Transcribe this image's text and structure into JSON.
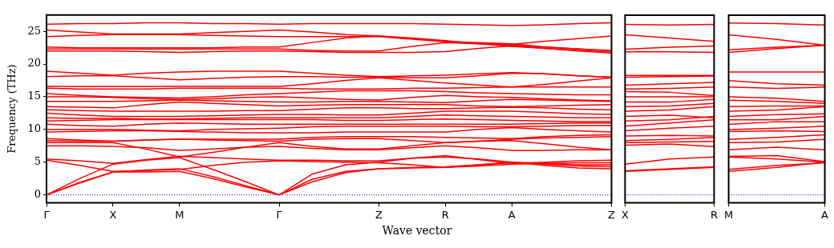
{
  "chart_data": [
    {
      "type": "line",
      "ylabel": "Frequency (THz)",
      "xlabel": "Wave vector",
      "color": "#ff0000",
      "categories": [
        "Γ",
        null,
        "X",
        null,
        "M",
        null,
        null,
        "Γ",
        null,
        null,
        "Z",
        null,
        "R",
        null,
        "A",
        null,
        null,
        "Z"
      ],
      "ylim": [
        -1.2,
        27.5
      ],
      "yticks": [
        0,
        5,
        10,
        15,
        20,
        25
      ],
      "ref_lines": [
        {
          "axis": "y",
          "value": 0,
          "color": "#0000ff",
          "line_style": "dotted"
        }
      ],
      "series": [
        {
          "values": [
            0,
            1.8,
            3.5,
            3.5,
            3.6,
            2.5,
            1.2,
            0,
            2.0,
            3.4,
            4.0,
            4.1,
            4.2,
            4.6,
            5.0,
            4.5,
            4.1,
            4.0
          ]
        },
        {
          "values": [
            0,
            1.9,
            3.5,
            3.8,
            4.0,
            2.8,
            1.4,
            0,
            2.4,
            3.6,
            4.0,
            4.2,
            4.3,
            4.6,
            4.9,
            4.7,
            4.4,
            4.3
          ]
        },
        {
          "values": [
            0,
            2.5,
            4.7,
            5.3,
            5.7,
            3.9,
            2.0,
            0,
            3.2,
            4.6,
            5.0,
            5.6,
            5.8,
            5.5,
            5.0,
            4.8,
            4.6,
            4.6
          ]
        },
        {
          "values": [
            5.5,
            5.2,
            4.8,
            5.4,
            5.9,
            5.7,
            5.5,
            5.3,
            5.3,
            5.2,
            5.2,
            5.6,
            6.0,
            5.4,
            4.8,
            5.0,
            5.2,
            5.3
          ]
        },
        {
          "values": [
            5.3,
            4.5,
            3.6,
            3.7,
            3.9,
            4.5,
            5.0,
            5.2,
            5.1,
            5.0,
            4.9,
            4.6,
            4.2,
            4.4,
            4.7,
            4.8,
            4.9,
            4.9
          ]
        },
        {
          "values": [
            7.5,
            7.5,
            7.4,
            7.2,
            6.8,
            7.0,
            7.3,
            7.4,
            7.1,
            6.9,
            6.9,
            7.2,
            7.5,
            7.2,
            6.8,
            6.8,
            6.9,
            6.9
          ]
        },
        {
          "values": [
            8.0,
            8.0,
            8.0,
            7.0,
            5.8,
            6.5,
            7.3,
            8.0,
            7.4,
            7.0,
            7.0,
            7.5,
            8.0,
            8.2,
            8.3,
            7.8,
            7.3,
            6.9
          ]
        },
        {
          "values": [
            8.3,
            8.2,
            8.2,
            8.4,
            8.5,
            8.4,
            8.3,
            8.2,
            8.5,
            8.6,
            8.6,
            8.3,
            8.0,
            8.2,
            8.5,
            8.7,
            8.8,
            8.9
          ]
        },
        {
          "values": [
            8.6,
            8.4,
            8.2,
            8.4,
            8.5,
            8.5,
            8.5,
            8.5,
            8.8,
            8.9,
            8.9,
            8.9,
            8.8,
            8.7,
            8.6,
            8.9,
            9.1,
            9.2
          ]
        },
        {
          "values": [
            9.6,
            9.7,
            9.8,
            9.8,
            9.7,
            9.6,
            9.5,
            9.5,
            9.5,
            9.6,
            9.6,
            9.6,
            9.6,
            10.0,
            10.3,
            10.0,
            9.8,
            9.6
          ]
        },
        {
          "values": [
            10.0,
            10.0,
            10.0,
            9.9,
            9.8,
            10.0,
            10.1,
            10.2,
            10.4,
            10.5,
            10.5,
            10.5,
            10.5,
            10.4,
            10.4,
            10.5,
            10.6,
            10.6
          ]
        },
        {
          "values": [
            10.8,
            10.6,
            10.5,
            10.8,
            11.0,
            10.9,
            10.8,
            10.8,
            10.8,
            10.8,
            10.8,
            10.8,
            10.8,
            10.8,
            10.8,
            10.9,
            11.0,
            11.0
          ]
        },
        {
          "values": [
            11.3,
            11.4,
            11.5,
            11.5,
            11.5,
            11.5,
            11.5,
            11.5,
            11.5,
            11.4,
            11.4,
            11.5,
            11.6,
            11.5,
            11.4,
            11.3,
            11.2,
            11.2
          ]
        },
        {
          "values": [
            11.8,
            11.7,
            11.7,
            11.6,
            11.6,
            11.7,
            11.8,
            11.8,
            11.8,
            11.8,
            11.8,
            12.0,
            12.2,
            12.1,
            12.0,
            11.9,
            11.8,
            11.8
          ]
        },
        {
          "values": [
            12.5,
            12.2,
            12.0,
            12.0,
            12.0,
            12.1,
            12.2,
            12.3,
            12.3,
            12.2,
            12.2,
            12.5,
            12.8,
            12.8,
            12.8,
            12.6,
            12.4,
            12.3
          ]
        },
        {
          "values": [
            13.0,
            12.9,
            12.8,
            12.8,
            12.8,
            12.8,
            12.9,
            12.9,
            13.1,
            13.3,
            13.3,
            13.2,
            13.2,
            13.3,
            13.4,
            13.3,
            13.1,
            13.0
          ]
        },
        {
          "values": [
            13.5,
            13.4,
            13.3,
            13.8,
            14.2,
            14.0,
            13.8,
            13.6,
            13.7,
            13.8,
            13.8,
            13.8,
            13.8,
            13.6,
            13.5,
            13.6,
            13.7,
            13.8
          ]
        },
        {
          "values": [
            14.3,
            14.3,
            14.3,
            14.4,
            14.5,
            14.4,
            14.3,
            14.2,
            14.2,
            14.3,
            14.3,
            14.2,
            14.1,
            14.4,
            14.6,
            14.5,
            14.4,
            14.3
          ]
        },
        {
          "values": [
            15.0,
            15.0,
            14.9,
            14.7,
            14.6,
            14.7,
            14.9,
            15.0,
            14.8,
            14.6,
            14.5,
            14.9,
            15.2,
            15.0,
            14.9,
            14.7,
            14.5,
            14.4
          ]
        },
        {
          "values": [
            15.5,
            15.2,
            15.0,
            14.9,
            14.8,
            15.0,
            15.3,
            15.5,
            15.7,
            15.9,
            15.9,
            15.9,
            15.8,
            15.6,
            15.5,
            15.4,
            15.3,
            15.3
          ]
        },
        {
          "values": [
            16.3,
            16.2,
            16.2,
            16.2,
            16.3,
            16.3,
            16.3,
            16.3,
            16.2,
            16.2,
            16.2,
            16.3,
            16.3,
            16.4,
            16.5,
            16.5,
            16.5,
            16.5
          ]
        },
        {
          "values": [
            16.6,
            16.6,
            16.6,
            16.6,
            16.6,
            16.6,
            16.6,
            16.6,
            17.0,
            17.5,
            17.9,
            17.5,
            17.1,
            16.8,
            16.5,
            16.9,
            17.4,
            17.9
          ]
        },
        {
          "values": [
            18.1,
            18.2,
            18.2,
            17.9,
            17.6,
            17.8,
            18.0,
            18.1,
            18.1,
            18.0,
            18.0,
            17.9,
            17.9,
            18.2,
            18.6,
            18.5,
            18.2,
            18.0
          ]
        },
        {
          "values": [
            18.9,
            18.6,
            18.3,
            18.6,
            18.8,
            18.9,
            18.9,
            18.9,
            18.6,
            18.3,
            18.1,
            18.2,
            18.3,
            18.5,
            18.7,
            18.5,
            18.2,
            18.0
          ]
        },
        {
          "values": [
            22.0,
            22.0,
            22.0,
            21.9,
            21.8,
            21.9,
            22.0,
            22.0,
            21.9,
            21.8,
            21.8,
            21.8,
            21.9,
            22.4,
            22.8,
            22.4,
            22.0,
            21.7
          ]
        },
        {
          "values": [
            22.3,
            22.3,
            22.3,
            22.3,
            22.3,
            22.3,
            22.3,
            22.3,
            22.1,
            22.0,
            22.0,
            22.7,
            23.3,
            23.1,
            22.9,
            22.6,
            22.3,
            22.1
          ]
        },
        {
          "values": [
            22.6,
            22.5,
            22.5,
            22.5,
            22.5,
            22.5,
            22.6,
            22.6,
            23.3,
            24.0,
            24.3,
            23.9,
            23.5,
            23.2,
            23.0,
            23.5,
            23.9,
            24.3
          ]
        },
        {
          "values": [
            24.2,
            24.4,
            24.5,
            24.5,
            24.5,
            24.4,
            24.3,
            24.2,
            24.2,
            24.2,
            24.2,
            23.8,
            23.4,
            23.3,
            23.1,
            22.6,
            22.3,
            22.0
          ]
        },
        {
          "values": [
            25.2,
            24.9,
            24.6,
            24.6,
            24.6,
            24.8,
            25.0,
            25.2,
            24.9,
            24.5,
            24.3,
            24.0,
            23.6,
            23.1,
            22.7,
            22.4,
            22.1,
            21.8
          ]
        },
        {
          "values": [
            26.1,
            26.2,
            26.2,
            26.3,
            26.3,
            26.2,
            26.2,
            26.1,
            26.2,
            26.2,
            26.2,
            26.2,
            26.1,
            26.0,
            25.9,
            26.0,
            26.2,
            26.3
          ]
        }
      ]
    },
    {
      "type": "line",
      "color": "#ff0000",
      "categories": [
        "X",
        null,
        "R"
      ],
      "ylim": [
        -1.2,
        27.5
      ],
      "yticks": [
        0,
        5,
        10,
        15,
        20,
        25
      ],
      "tick_labels": "x",
      "ref_lines": [
        {
          "axis": "y",
          "value": 0,
          "color": "#0000ff",
          "line_style": "dotted"
        }
      ],
      "series": [
        {
          "values": [
            3.6,
            3.9,
            4.2
          ]
        },
        {
          "values": [
            3.7,
            4.0,
            4.3
          ]
        },
        {
          "values": [
            4.7,
            5.5,
            5.8
          ]
        },
        {
          "values": [
            7.6,
            7.8,
            7.4
          ]
        },
        {
          "values": [
            8.0,
            8.1,
            8.2
          ]
        },
        {
          "values": [
            8.3,
            8.5,
            8.8
          ]
        },
        {
          "values": [
            9.0,
            9.1,
            9.0
          ]
        },
        {
          "values": [
            9.8,
            10.2,
            10.5
          ]
        },
        {
          "values": [
            10.5,
            11.0,
            11.5
          ]
        },
        {
          "values": [
            11.3,
            11.5,
            12.0
          ]
        },
        {
          "values": [
            12.0,
            12.2,
            11.8
          ]
        },
        {
          "values": [
            12.8,
            13.0,
            13.5
          ]
        },
        {
          "values": [
            13.5,
            13.6,
            14.0
          ]
        },
        {
          "values": [
            14.2,
            14.2,
            14.6
          ]
        },
        {
          "values": [
            15.0,
            15.0,
            15.0
          ]
        },
        {
          "values": [
            15.8,
            15.7,
            15.2
          ]
        },
        {
          "values": [
            16.2,
            16.3,
            16.5
          ]
        },
        {
          "values": [
            16.8,
            17.0,
            17.2
          ]
        },
        {
          "values": [
            18.0,
            18.1,
            18.2
          ]
        },
        {
          "values": [
            18.3,
            18.3,
            18.3
          ]
        },
        {
          "values": [
            21.9,
            21.9,
            21.8
          ]
        },
        {
          "values": [
            22.3,
            22.6,
            22.8
          ]
        },
        {
          "values": [
            24.5,
            24.0,
            23.5
          ]
        },
        {
          "values": [
            26.1,
            26.0,
            26.1
          ]
        }
      ]
    },
    {
      "type": "line",
      "color": "#ff0000",
      "categories": [
        "M",
        null,
        "A"
      ],
      "ylim": [
        -1.2,
        27.5
      ],
      "yticks": [
        0,
        5,
        10,
        15,
        20,
        25
      ],
      "tick_labels": "x",
      "ref_lines": [
        {
          "axis": "y",
          "value": 0,
          "color": "#0000ff",
          "line_style": "dotted"
        }
      ],
      "series": [
        {
          "values": [
            3.6,
            4.2,
            5.0
          ]
        },
        {
          "values": [
            3.9,
            4.5,
            4.9
          ]
        },
        {
          "values": [
            5.8,
            5.5,
            5.0
          ]
        },
        {
          "values": [
            5.9,
            6.0,
            5.1
          ]
        },
        {
          "values": [
            6.9,
            7.3,
            6.9
          ]
        },
        {
          "values": [
            8.0,
            8.1,
            8.5
          ]
        },
        {
          "values": [
            8.5,
            8.8,
            9.2
          ]
        },
        {
          "values": [
            9.7,
            9.8,
            9.7
          ]
        },
        {
          "values": [
            10.0,
            10.2,
            10.5
          ]
        },
        {
          "values": [
            10.8,
            11.2,
            11.2
          ]
        },
        {
          "values": [
            11.5,
            11.5,
            12.0
          ]
        },
        {
          "values": [
            12.0,
            12.3,
            12.4
          ]
        },
        {
          "values": [
            12.8,
            13.0,
            13.5
          ]
        },
        {
          "values": [
            13.5,
            13.6,
            13.6
          ]
        },
        {
          "values": [
            14.5,
            14.3,
            14.0
          ]
        },
        {
          "values": [
            15.0,
            14.8,
            14.3
          ]
        },
        {
          "values": [
            16.5,
            16.3,
            16.5
          ]
        },
        {
          "values": [
            17.5,
            17.0,
            16.8
          ]
        },
        {
          "values": [
            18.8,
            18.8,
            18.8
          ]
        },
        {
          "values": [
            21.8,
            22.4,
            22.9
          ]
        },
        {
          "values": [
            22.2,
            22.6,
            22.9
          ]
        },
        {
          "values": [
            24.5,
            23.8,
            22.9
          ]
        },
        {
          "values": [
            26.3,
            26.2,
            26.0
          ]
        }
      ]
    }
  ]
}
